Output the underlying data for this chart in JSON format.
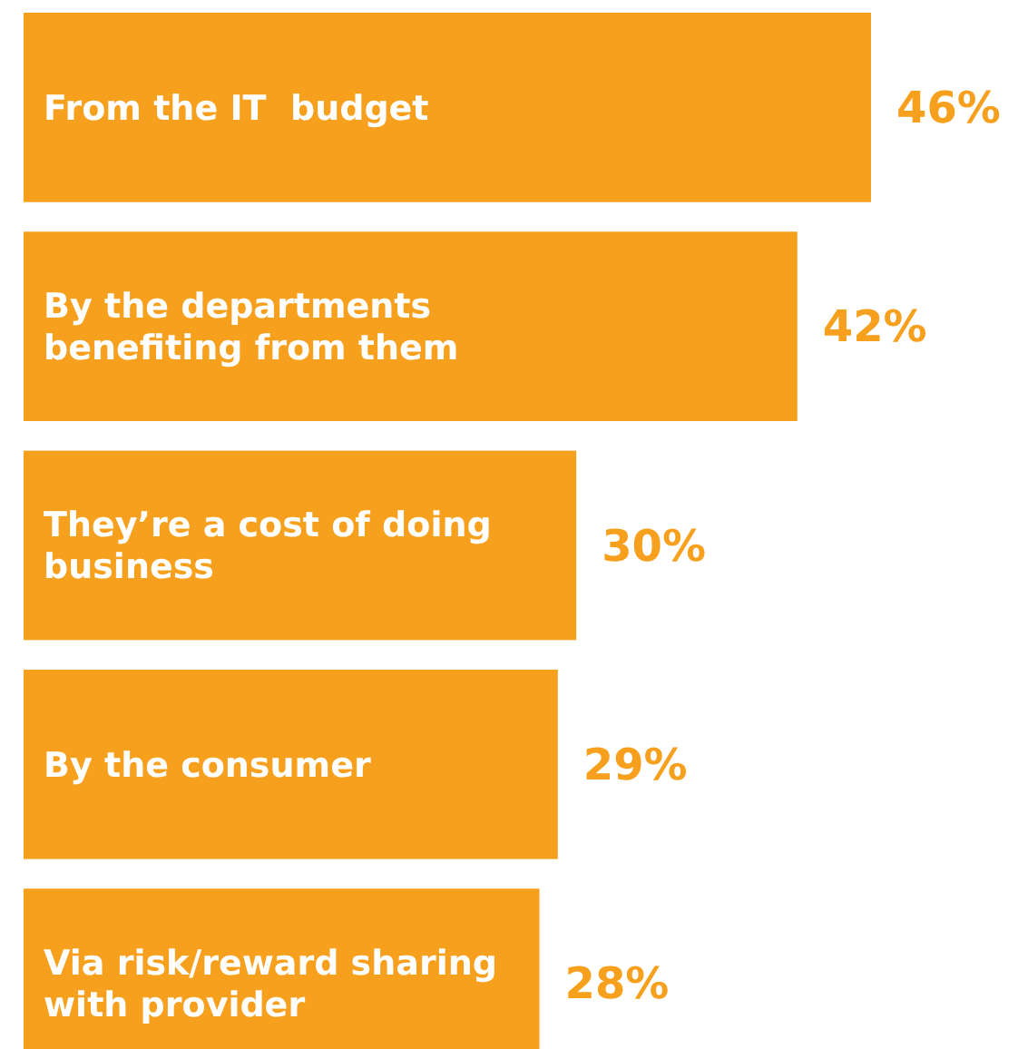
{
  "chart_data": {
    "type": "bar",
    "orientation": "horizontal",
    "categories": [
      "From the IT  budget",
      "By the departments benefiting from them",
      "They’re a cost of doing business",
      "By the consumer",
      "Via risk/reward sharing with provider"
    ],
    "values": [
      46,
      42,
      30,
      29,
      28
    ],
    "value_labels": [
      "46%",
      "42%",
      "30%",
      "29%",
      "28%"
    ],
    "color": "#f7a01d"
  }
}
